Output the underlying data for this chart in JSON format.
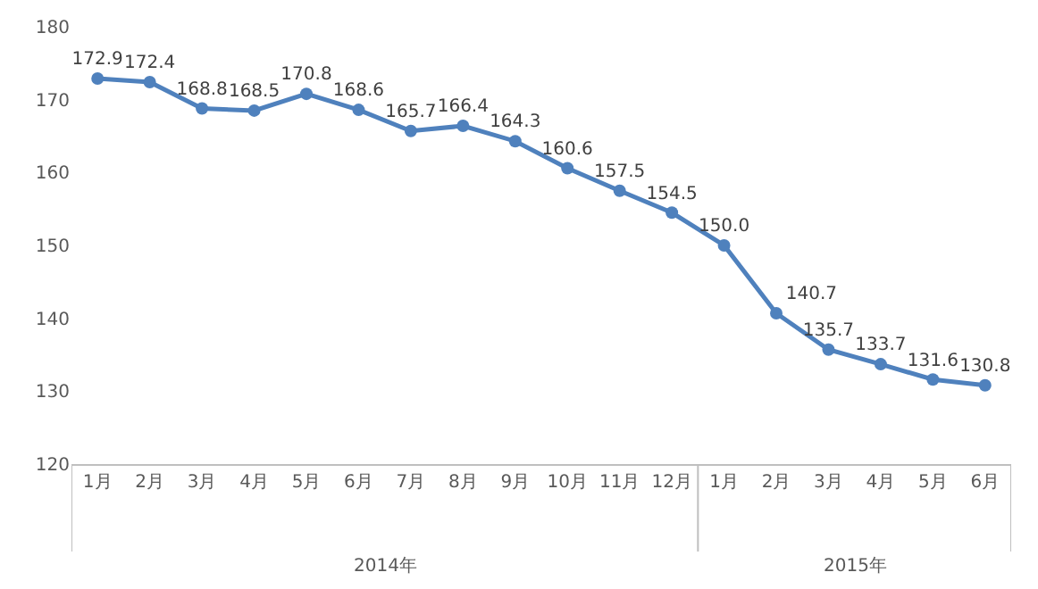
{
  "chart_data": {
    "type": "line",
    "categories": [
      "1月",
      "2月",
      "3月",
      "4月",
      "5月",
      "6月",
      "7月",
      "8月",
      "9月",
      "10月",
      "11月",
      "12月",
      "1月",
      "2月",
      "3月",
      "4月",
      "5月",
      "6月"
    ],
    "series": [
      {
        "color": "#4f81bd",
        "values": [
          172.9,
          172.4,
          168.8,
          168.5,
          170.8,
          168.6,
          165.7,
          166.4,
          164.3,
          160.6,
          157.5,
          154.5,
          150.0,
          140.7,
          135.7,
          133.7,
          131.6,
          130.8
        ]
      }
    ],
    "value_labels": [
      "172.9",
      "172.4",
      "168.8",
      "168.5",
      "170.8",
      "168.6",
      "165.7",
      "166.4",
      "164.3",
      "160.6",
      "157.5",
      "154.5",
      "150.0",
      "140.7",
      "135.7",
      "133.7",
      "131.6",
      "130.8"
    ],
    "annotations": [
      "2014年",
      "2015年"
    ],
    "ylim": [
      120,
      180
    ],
    "yticks": [
      120,
      130,
      140,
      150,
      160,
      170,
      180
    ],
    "grid": false,
    "marker": "circle",
    "line_style": "solid"
  }
}
